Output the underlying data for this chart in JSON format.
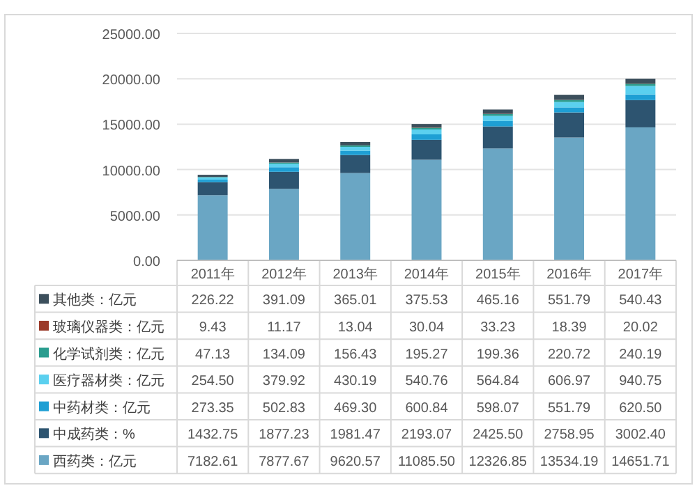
{
  "chart_data": {
    "type": "bar",
    "stacked": true,
    "categories": [
      "2011年",
      "2012年",
      "2013年",
      "2014年",
      "2015年",
      "2016年",
      "2017年"
    ],
    "series": [
      {
        "name": "西药类：亿元",
        "color": "#6aa6c4",
        "values": [
          7182.61,
          7877.67,
          9620.57,
          11085.5,
          12326.85,
          13534.19,
          14651.71
        ],
        "value_labels": [
          "7182.61",
          "7877.67",
          "9620.57",
          "11085.50",
          "12326.85",
          "13534.19",
          "14651.71"
        ]
      },
      {
        "name": "中成药类：%",
        "color": "#2d5470",
        "values": [
          1432.75,
          1877.23,
          1981.47,
          2193.07,
          2425.5,
          2758.95,
          3002.4
        ],
        "value_labels": [
          "1432.75",
          "1877.23",
          "1981.47",
          "2193.07",
          "2425.50",
          "2758.95",
          "3002.40"
        ]
      },
      {
        "name": "中药材类：亿元",
        "color": "#1e9fd4",
        "values": [
          273.35,
          502.83,
          469.3,
          600.84,
          598.07,
          551.79,
          620.5
        ],
        "value_labels": [
          "273.35",
          "502.83",
          "469.30",
          "600.84",
          "598.07",
          "551.79",
          "620.50"
        ]
      },
      {
        "name": "医疗器材类：亿元",
        "color": "#5bd0ef",
        "values": [
          254.5,
          379.92,
          430.19,
          540.76,
          564.84,
          606.97,
          940.75
        ],
        "value_labels": [
          "254.50",
          "379.92",
          "430.19",
          "540.76",
          "564.84",
          "606.97",
          "940.75"
        ]
      },
      {
        "name": "化学试剂类：亿元",
        "color": "#2a9d8f",
        "values": [
          47.13,
          134.09,
          156.43,
          195.27,
          199.36,
          220.72,
          240.19
        ],
        "value_labels": [
          "47.13",
          "134.09",
          "156.43",
          "195.27",
          "199.36",
          "220.72",
          "240.19"
        ]
      },
      {
        "name": "玻璃仪器类：亿元",
        "color": "#9b3a2a",
        "values": [
          9.43,
          11.17,
          13.04,
          30.04,
          33.23,
          18.39,
          20.02
        ],
        "value_labels": [
          "9.43",
          "11.17",
          "13.04",
          "30.04",
          "33.23",
          "18.39",
          "20.02"
        ]
      },
      {
        "name": "其他类：亿元",
        "color": "#3c4f5c",
        "values": [
          226.22,
          391.09,
          365.01,
          375.53,
          465.16,
          551.79,
          540.43
        ],
        "value_labels": [
          "226.22",
          "391.09",
          "365.01",
          "375.53",
          "465.16",
          "551.79",
          "540.43"
        ]
      }
    ],
    "ylim": [
      0,
      25000
    ],
    "yticks": [
      {
        "value": 0,
        "label": "0.00"
      },
      {
        "value": 5000,
        "label": "5000.00"
      },
      {
        "value": 10000,
        "label": "10000.00"
      },
      {
        "value": 15000,
        "label": "15000.00"
      },
      {
        "value": 20000,
        "label": "20000.00"
      },
      {
        "value": 25000,
        "label": "25000.00"
      }
    ],
    "grid": "y",
    "legend": "bottom"
  }
}
